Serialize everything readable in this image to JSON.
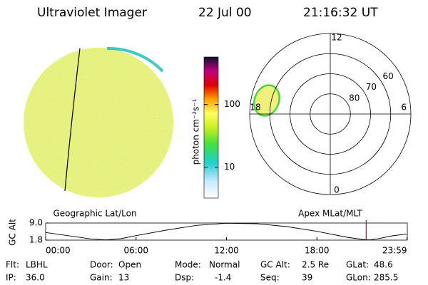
{
  "header": {
    "instrument": "Ultraviolet Imager",
    "date": "22 Jul 00",
    "time": "21:16:32 UT"
  },
  "colorbar": {
    "label": "photon cm⁻²s⁻¹",
    "scale": "log",
    "lim": [
      3.2,
      575
    ],
    "ticks": [
      10,
      100
    ]
  },
  "polar": {
    "title": "Apex MLat/MLT",
    "mlt_labels": [
      12,
      6,
      0,
      18
    ],
    "rings": [
      60,
      70,
      80
    ],
    "rlim": [
      90,
      50
    ]
  },
  "image": {
    "title": "Geographic Lat/Lon"
  },
  "altitude": {
    "ylabel": "GC Alt",
    "ylim": [
      1.8,
      9.0
    ],
    "yticks": [
      {
        "value": 9.0,
        "label": "9.0"
      },
      1.8
    ],
    "xlim": [
      0,
      24
    ],
    "xticks": [
      {
        "value": 0,
        "label": "00:00"
      },
      {
        "value": 6,
        "label": "06:00"
      },
      {
        "value": 12,
        "label": "12:00"
      },
      {
        "value": 18,
        "label": "18:00"
      },
      {
        "value": 23.98,
        "label": "23:59"
      }
    ],
    "x": [
      0,
      2,
      3,
      4,
      5,
      6,
      8,
      10,
      12,
      14,
      16,
      18,
      20,
      21,
      21.5,
      22,
      23,
      23.98
    ],
    "values": [
      5.0,
      3.2,
      2.3,
      1.9,
      2.4,
      3.7,
      6.0,
      8.0,
      8.9,
      8.7,
      7.5,
      5.5,
      3.0,
      2.1,
      1.9,
      2.3,
      3.6,
      4.4
    ],
    "current": 21.27
  },
  "info": [
    [
      [
        "Flt:",
        "LBHL"
      ],
      [
        "Door:",
        "Open"
      ],
      [
        "Mode:",
        "Normal"
      ],
      [
        "GC Alt:",
        "2.5 Re"
      ],
      [
        "GLat:",
        "48.6"
      ]
    ],
    [
      [
        "IP:",
        "36.0"
      ],
      [
        "Gain:",
        "13"
      ],
      [
        "Dsp:",
        "-1.4"
      ],
      [
        "Seq:",
        "39"
      ],
      [
        "GLon:",
        "285.5"
      ]
    ]
  ]
}
